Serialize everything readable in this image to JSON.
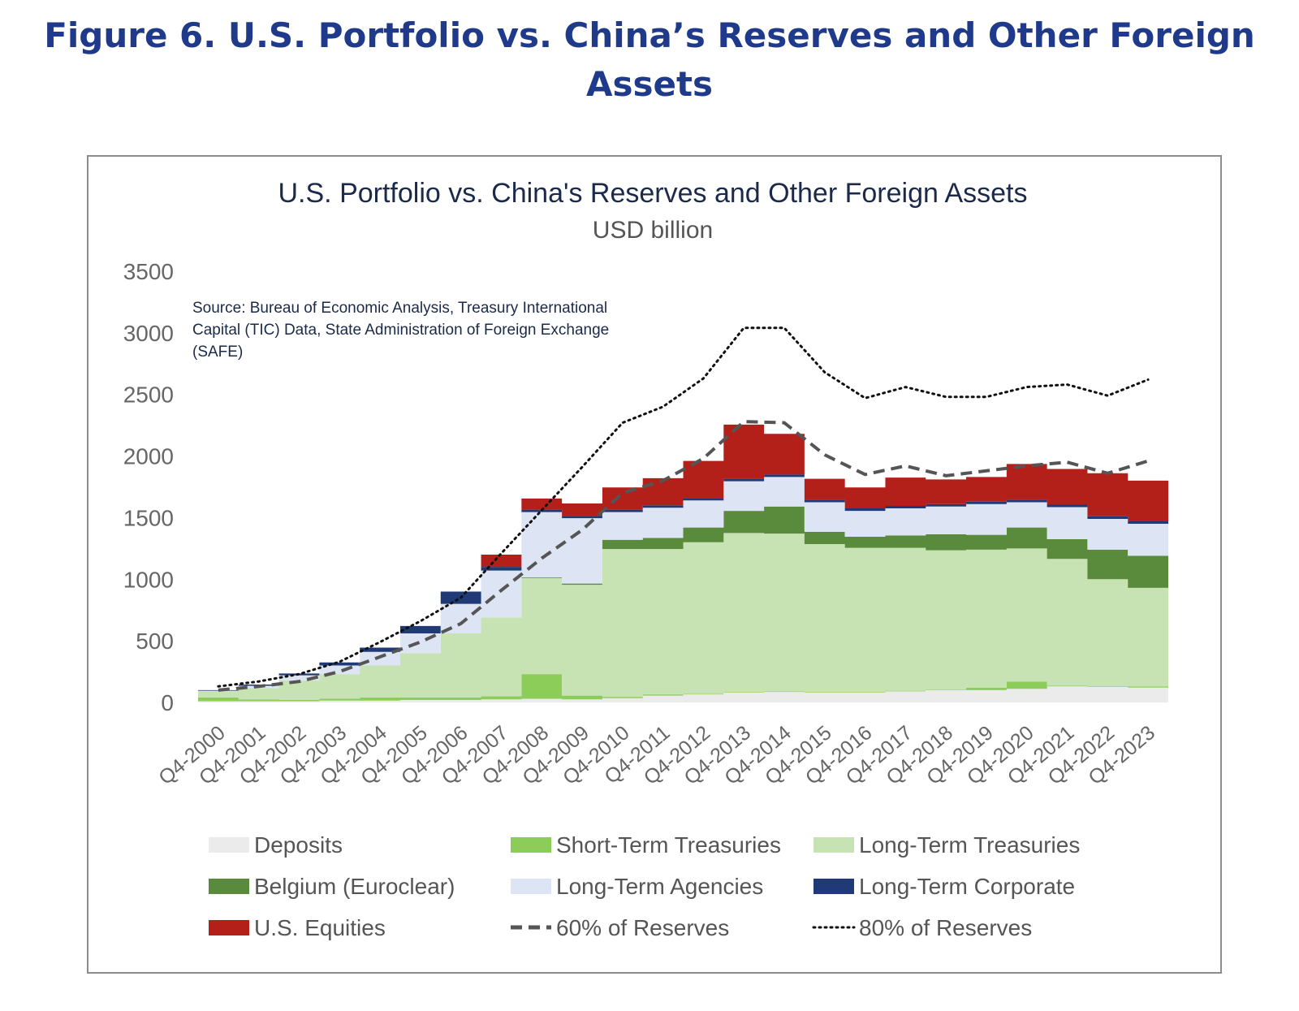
{
  "figure": {
    "heading_line1": "Figure 6. U.S. Portfolio vs. China’s Reserves and Other Foreign",
    "heading_line2": "Assets"
  },
  "chart_data": {
    "type": "area",
    "title": "U.S. Portfolio vs. China's Reserves and Other Foreign Assets",
    "subtitle": "USD billion",
    "source": "Source: Bureau of Economic Analysis, Treasury International Capital (TIC) Data, State Administration of Foreign Exchange (SAFE)",
    "xlabel": "",
    "ylabel": "",
    "ylim": [
      0,
      3500
    ],
    "yticks": [
      0,
      500,
      1000,
      1500,
      2000,
      2500,
      3000,
      3500
    ],
    "grid": false,
    "legend_position": "bottom",
    "categories": [
      "Q4-2000",
      "Q4-2001",
      "Q4-2002",
      "Q4-2003",
      "Q4-2004",
      "Q4-2005",
      "Q4-2006",
      "Q4-2007",
      "Q4-2008",
      "Q4-2009",
      "Q4-2010",
      "Q4-2011",
      "Q4-2012",
      "Q4-2013",
      "Q4-2014",
      "Q4-2015",
      "Q4-2016",
      "Q4-2017",
      "Q4-2018",
      "Q4-2019",
      "Q4-2020",
      "Q4-2021",
      "Q4-2022",
      "Q4-2023"
    ],
    "stack_series": [
      {
        "name": "Deposits",
        "color": "#ebebeb",
        "values": [
          10,
          10,
          10,
          15,
          15,
          20,
          20,
          25,
          30,
          25,
          35,
          55,
          65,
          80,
          85,
          80,
          80,
          90,
          100,
          100,
          110,
          130,
          125,
          120
        ]
      },
      {
        "name": "Short-Term Treasuries",
        "color": "#8ccd5a",
        "values": [
          30,
          15,
          10,
          15,
          25,
          20,
          20,
          25,
          200,
          30,
          10,
          10,
          5,
          5,
          5,
          5,
          5,
          5,
          5,
          20,
          60,
          5,
          5,
          10
        ]
      },
      {
        "name": "Long-Term Treasuries",
        "color": "#c8e3b3",
        "values": [
          50,
          90,
          160,
          200,
          260,
          360,
          520,
          640,
          780,
          900,
          1200,
          1180,
          1230,
          1290,
          1280,
          1200,
          1170,
          1160,
          1130,
          1120,
          1080,
          1030,
          870,
          800
        ]
      },
      {
        "name": "Belgium (Euroclear)",
        "color": "#5a8b3c",
        "values": [
          0,
          0,
          0,
          0,
          0,
          0,
          0,
          0,
          5,
          10,
          75,
          90,
          120,
          180,
          220,
          100,
          90,
          100,
          130,
          120,
          170,
          160,
          240,
          260
        ]
      },
      {
        "name": "Long-Term Agencies",
        "color": "#dde4f3",
        "values": [
          5,
          20,
          40,
          70,
          110,
          160,
          240,
          380,
          530,
          530,
          225,
          245,
          220,
          240,
          240,
          240,
          210,
          220,
          225,
          250,
          205,
          260,
          250,
          260
        ]
      },
      {
        "name": "Long-Term Corporate",
        "color": "#1f3a76",
        "values": [
          5,
          10,
          15,
          25,
          35,
          60,
          100,
          30,
          20,
          20,
          20,
          20,
          20,
          20,
          20,
          20,
          20,
          20,
          20,
          20,
          20,
          20,
          20,
          20
        ]
      },
      {
        "name": "U.S. Equities",
        "color": "#b22019",
        "values": [
          0,
          0,
          0,
          0,
          0,
          0,
          0,
          100,
          90,
          100,
          180,
          220,
          300,
          440,
          330,
          170,
          170,
          230,
          200,
          200,
          290,
          290,
          350,
          330
        ]
      }
    ],
    "line_series": [
      {
        "name": "60% of Reserves",
        "style": "dashed",
        "color": "#555555",
        "values": [
          100,
          130,
          170,
          250,
          370,
          490,
          640,
          910,
          1170,
          1400,
          1700,
          1800,
          1980,
          2280,
          2270,
          2010,
          1850,
          1920,
          1840,
          1880,
          1920,
          1950,
          1860,
          1960
        ]
      },
      {
        "name": "80% of Reserves",
        "style": "dotted",
        "color": "#111111",
        "values": [
          130,
          170,
          230,
          330,
          490,
          660,
          850,
          1210,
          1560,
          1910,
          2270,
          2400,
          2630,
          3040,
          3040,
          2680,
          2470,
          2560,
          2480,
          2480,
          2560,
          2580,
          2490,
          2620
        ]
      }
    ],
    "legend_rows": [
      [
        "Deposits",
        "Short-Term Treasuries",
        "Long-Term Treasuries"
      ],
      [
        "Belgium (Euroclear)",
        "Long-Term Agencies",
        "Long-Term Corporate"
      ],
      [
        "U.S. Equities",
        "60% of Reserves",
        "80% of Reserves"
      ]
    ]
  }
}
